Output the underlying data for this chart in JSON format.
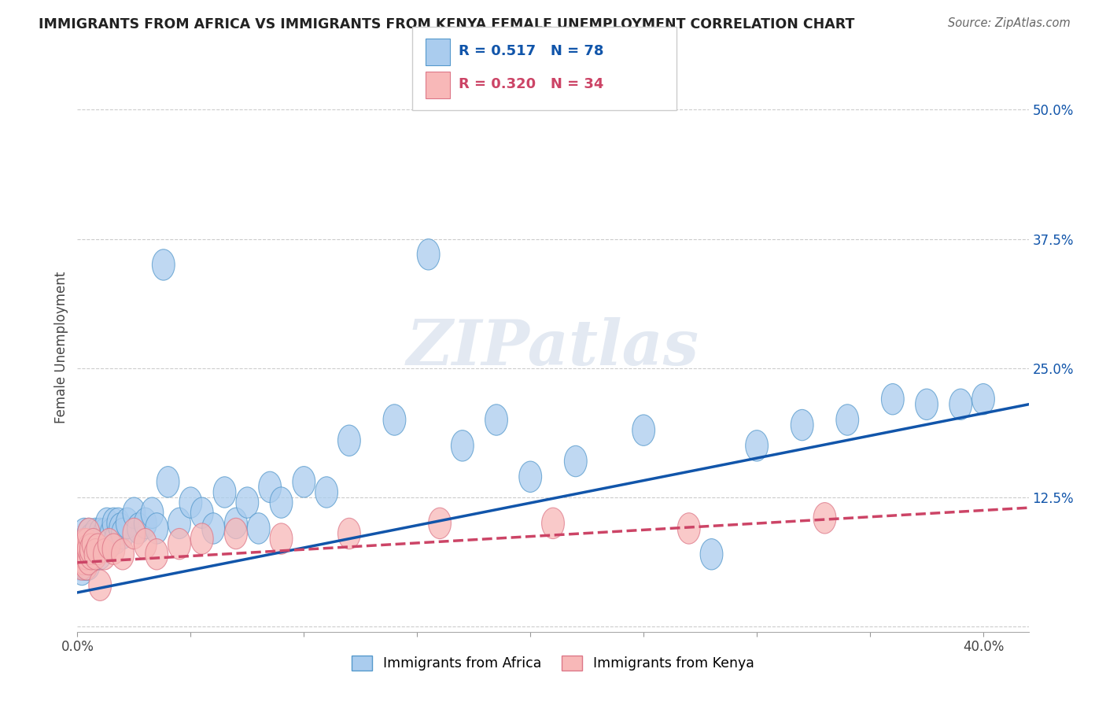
{
  "title": "IMMIGRANTS FROM AFRICA VS IMMIGRANTS FROM KENYA FEMALE UNEMPLOYMENT CORRELATION CHART",
  "source": "Source: ZipAtlas.com",
  "ylabel": "Female Unemployment",
  "xlim": [
    0.0,
    0.42
  ],
  "ylim": [
    -0.005,
    0.545
  ],
  "yticks_right": [
    0.0,
    0.125,
    0.25,
    0.375,
    0.5
  ],
  "yticklabels_right": [
    "",
    "12.5%",
    "25.0%",
    "37.5%",
    "50.0%"
  ],
  "series1_label": "Immigrants from Africa",
  "series2_label": "Immigrants from Kenya",
  "R1": "0.517",
  "N1": "78",
  "R2": "0.320",
  "N2": "34",
  "color1": "#aaccee",
  "color2": "#f8b8b8",
  "edge1": "#5599cc",
  "edge2": "#dd7788",
  "trendline1_color": "#1155aa",
  "trendline2_color": "#cc4466",
  "watermark": "ZIPatlas",
  "background_color": "#ffffff",
  "africa_x": [
    0.001,
    0.001,
    0.002,
    0.002,
    0.002,
    0.002,
    0.003,
    0.003,
    0.003,
    0.003,
    0.003,
    0.003,
    0.004,
    0.004,
    0.004,
    0.004,
    0.004,
    0.005,
    0.005,
    0.005,
    0.005,
    0.005,
    0.006,
    0.006,
    0.006,
    0.007,
    0.007,
    0.008,
    0.008,
    0.009,
    0.01,
    0.01,
    0.011,
    0.012,
    0.013,
    0.014,
    0.015,
    0.016,
    0.017,
    0.018,
    0.019,
    0.02,
    0.022,
    0.025,
    0.027,
    0.03,
    0.033,
    0.035,
    0.038,
    0.04,
    0.045,
    0.05,
    0.055,
    0.06,
    0.065,
    0.07,
    0.075,
    0.08,
    0.085,
    0.09,
    0.1,
    0.11,
    0.12,
    0.14,
    0.155,
    0.17,
    0.185,
    0.2,
    0.22,
    0.25,
    0.28,
    0.3,
    0.32,
    0.34,
    0.36,
    0.375,
    0.39,
    0.4
  ],
  "africa_y": [
    0.06,
    0.07,
    0.055,
    0.07,
    0.08,
    0.065,
    0.06,
    0.07,
    0.065,
    0.075,
    0.08,
    0.09,
    0.06,
    0.065,
    0.07,
    0.075,
    0.08,
    0.06,
    0.065,
    0.07,
    0.08,
    0.09,
    0.07,
    0.075,
    0.085,
    0.07,
    0.08,
    0.07,
    0.09,
    0.08,
    0.07,
    0.09,
    0.08,
    0.09,
    0.1,
    0.08,
    0.09,
    0.1,
    0.085,
    0.1,
    0.095,
    0.09,
    0.1,
    0.11,
    0.095,
    0.1,
    0.11,
    0.095,
    0.35,
    0.14,
    0.1,
    0.12,
    0.11,
    0.095,
    0.13,
    0.1,
    0.12,
    0.095,
    0.135,
    0.12,
    0.14,
    0.13,
    0.18,
    0.2,
    0.36,
    0.175,
    0.2,
    0.145,
    0.16,
    0.19,
    0.07,
    0.175,
    0.195,
    0.2,
    0.22,
    0.215,
    0.215,
    0.22
  ],
  "kenya_x": [
    0.001,
    0.002,
    0.002,
    0.003,
    0.003,
    0.003,
    0.004,
    0.004,
    0.004,
    0.005,
    0.005,
    0.005,
    0.006,
    0.006,
    0.007,
    0.008,
    0.009,
    0.01,
    0.012,
    0.014,
    0.016,
    0.02,
    0.025,
    0.03,
    0.035,
    0.045,
    0.055,
    0.07,
    0.09,
    0.12,
    0.16,
    0.21,
    0.27,
    0.33
  ],
  "kenya_y": [
    0.065,
    0.06,
    0.075,
    0.065,
    0.07,
    0.08,
    0.06,
    0.07,
    0.08,
    0.065,
    0.075,
    0.09,
    0.07,
    0.075,
    0.08,
    0.07,
    0.075,
    0.04,
    0.07,
    0.08,
    0.075,
    0.07,
    0.09,
    0.08,
    0.07,
    0.08,
    0.085,
    0.09,
    0.085,
    0.09,
    0.1,
    0.1,
    0.095,
    0.105
  ],
  "trendline1_x": [
    0.0,
    0.42
  ],
  "trendline1_y": [
    0.033,
    0.215
  ],
  "trendline2_x": [
    0.0,
    0.42
  ],
  "trendline2_y": [
    0.062,
    0.115
  ]
}
